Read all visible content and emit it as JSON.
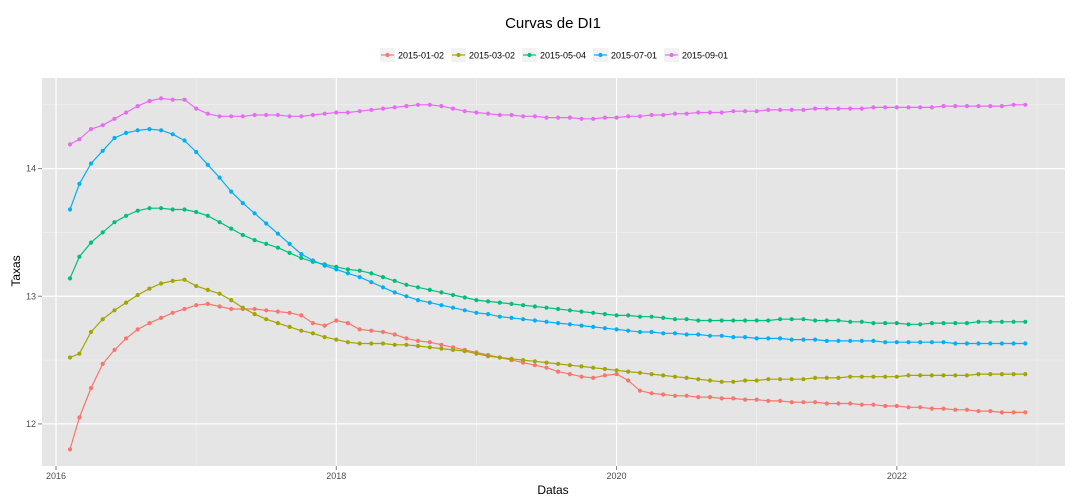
{
  "chart_data": {
    "type": "line",
    "title": "Curvas de DI1",
    "xlabel": "Datas",
    "ylabel": "Taxas",
    "xlim": [
      2015.9,
      2023.2
    ],
    "ylim": [
      11.67,
      14.71
    ],
    "x_ticks": [
      2016,
      2018,
      2020,
      2022
    ],
    "x_tick_labels": [
      "2016",
      "2018",
      "2020",
      "2022"
    ],
    "y_ticks": [
      12,
      13,
      14
    ],
    "y_tick_labels": [
      "12",
      "13",
      "14"
    ],
    "grid": true,
    "legend_position": "top",
    "markers": true,
    "series": [
      {
        "name": "2015-01-02",
        "color": "#F8766D",
        "x": [
          2016.1,
          2016.167,
          2016.25,
          2016.333,
          2016.417,
          2016.5,
          2016.583,
          2016.667,
          2016.75,
          2016.833,
          2016.917,
          2017.0,
          2017.083,
          2017.167,
          2017.25,
          2017.333,
          2017.417,
          2017.5,
          2017.583,
          2017.667,
          2017.75,
          2017.833,
          2017.917,
          2018.0,
          2018.083,
          2018.167,
          2018.25,
          2018.333,
          2018.417,
          2018.5,
          2018.583,
          2018.667,
          2018.75,
          2018.833,
          2018.917,
          2019.0,
          2019.083,
          2019.167,
          2019.25,
          2019.333,
          2019.417,
          2019.5,
          2019.583,
          2019.667,
          2019.75,
          2019.833,
          2019.917,
          2020.0,
          2020.083,
          2020.167,
          2020.25,
          2020.333,
          2020.417,
          2020.5,
          2020.583,
          2020.667,
          2020.75,
          2020.833,
          2020.917,
          2021.0,
          2021.083,
          2021.167,
          2021.25,
          2021.333,
          2021.417,
          2021.5,
          2021.583,
          2021.667,
          2021.75,
          2021.833,
          2021.917,
          2022.0,
          2022.083,
          2022.167,
          2022.25,
          2022.333,
          2022.417,
          2022.5,
          2022.583,
          2022.667,
          2022.75,
          2022.833,
          2022.917
        ],
        "values": [
          11.8,
          12.05,
          12.28,
          12.47,
          12.58,
          12.67,
          12.74,
          12.79,
          12.83,
          12.87,
          12.9,
          12.93,
          12.94,
          12.92,
          12.9,
          12.9,
          12.9,
          12.89,
          12.88,
          12.87,
          12.85,
          12.79,
          12.77,
          12.81,
          12.79,
          12.74,
          12.73,
          12.72,
          12.7,
          12.67,
          12.65,
          12.64,
          12.62,
          12.6,
          12.58,
          12.56,
          12.54,
          12.52,
          12.5,
          12.48,
          12.46,
          12.44,
          12.41,
          12.39,
          12.37,
          12.36,
          12.38,
          12.39,
          12.34,
          12.26,
          12.24,
          12.23,
          12.22,
          12.22,
          12.21,
          12.21,
          12.2,
          12.2,
          12.19,
          12.19,
          12.18,
          12.18,
          12.17,
          12.17,
          12.17,
          12.16,
          12.16,
          12.16,
          12.15,
          12.15,
          12.14,
          12.14,
          12.13,
          12.13,
          12.12,
          12.12,
          12.11,
          12.11,
          12.1,
          12.1,
          12.09,
          12.09,
          12.09
        ]
      },
      {
        "name": "2015-03-02",
        "color": "#A3A500",
        "x": [
          2016.1,
          2016.167,
          2016.25,
          2016.333,
          2016.417,
          2016.5,
          2016.583,
          2016.667,
          2016.75,
          2016.833,
          2016.917,
          2017.0,
          2017.083,
          2017.167,
          2017.25,
          2017.333,
          2017.417,
          2017.5,
          2017.583,
          2017.667,
          2017.75,
          2017.833,
          2017.917,
          2018.0,
          2018.083,
          2018.167,
          2018.25,
          2018.333,
          2018.417,
          2018.5,
          2018.583,
          2018.667,
          2018.75,
          2018.833,
          2018.917,
          2019.0,
          2019.083,
          2019.167,
          2019.25,
          2019.333,
          2019.417,
          2019.5,
          2019.583,
          2019.667,
          2019.75,
          2019.833,
          2019.917,
          2020.0,
          2020.083,
          2020.167,
          2020.25,
          2020.333,
          2020.417,
          2020.5,
          2020.583,
          2020.667,
          2020.75,
          2020.833,
          2020.917,
          2021.0,
          2021.083,
          2021.167,
          2021.25,
          2021.333,
          2021.417,
          2021.5,
          2021.583,
          2021.667,
          2021.75,
          2021.833,
          2021.917,
          2022.0,
          2022.083,
          2022.167,
          2022.25,
          2022.333,
          2022.417,
          2022.5,
          2022.583,
          2022.667,
          2022.75,
          2022.833,
          2022.917
        ],
        "values": [
          12.52,
          12.55,
          12.72,
          12.82,
          12.89,
          12.95,
          13.01,
          13.06,
          13.1,
          13.12,
          13.13,
          13.08,
          13.05,
          13.02,
          12.97,
          12.91,
          12.86,
          12.82,
          12.79,
          12.76,
          12.73,
          12.71,
          12.68,
          12.66,
          12.64,
          12.63,
          12.63,
          12.63,
          12.62,
          12.62,
          12.61,
          12.6,
          12.59,
          12.58,
          12.57,
          12.55,
          12.53,
          12.52,
          12.51,
          12.5,
          12.49,
          12.48,
          12.47,
          12.46,
          12.45,
          12.44,
          12.43,
          12.42,
          12.41,
          12.4,
          12.39,
          12.38,
          12.37,
          12.36,
          12.35,
          12.34,
          12.33,
          12.33,
          12.34,
          12.34,
          12.35,
          12.35,
          12.35,
          12.35,
          12.36,
          12.36,
          12.36,
          12.37,
          12.37,
          12.37,
          12.37,
          12.37,
          12.38,
          12.38,
          12.38,
          12.38,
          12.38,
          12.38,
          12.39,
          12.39,
          12.39,
          12.39,
          12.39
        ]
      },
      {
        "name": "2015-05-04",
        "color": "#00BF7D",
        "x": [
          2016.1,
          2016.167,
          2016.25,
          2016.333,
          2016.417,
          2016.5,
          2016.583,
          2016.667,
          2016.75,
          2016.833,
          2016.917,
          2017.0,
          2017.083,
          2017.167,
          2017.25,
          2017.333,
          2017.417,
          2017.5,
          2017.583,
          2017.667,
          2017.75,
          2017.833,
          2017.917,
          2018.0,
          2018.083,
          2018.167,
          2018.25,
          2018.333,
          2018.417,
          2018.5,
          2018.583,
          2018.667,
          2018.75,
          2018.833,
          2018.917,
          2019.0,
          2019.083,
          2019.167,
          2019.25,
          2019.333,
          2019.417,
          2019.5,
          2019.583,
          2019.667,
          2019.75,
          2019.833,
          2019.917,
          2020.0,
          2020.083,
          2020.167,
          2020.25,
          2020.333,
          2020.417,
          2020.5,
          2020.583,
          2020.667,
          2020.75,
          2020.833,
          2020.917,
          2021.0,
          2021.083,
          2021.167,
          2021.25,
          2021.333,
          2021.417,
          2021.5,
          2021.583,
          2021.667,
          2021.75,
          2021.833,
          2021.917,
          2022.0,
          2022.083,
          2022.167,
          2022.25,
          2022.333,
          2022.417,
          2022.5,
          2022.583,
          2022.667,
          2022.75,
          2022.833,
          2022.917
        ],
        "values": [
          13.14,
          13.31,
          13.42,
          13.5,
          13.58,
          13.63,
          13.67,
          13.69,
          13.69,
          13.68,
          13.68,
          13.66,
          13.63,
          13.58,
          13.53,
          13.48,
          13.44,
          13.41,
          13.38,
          13.34,
          13.3,
          13.27,
          13.25,
          13.23,
          13.21,
          13.2,
          13.18,
          13.15,
          13.12,
          13.09,
          13.07,
          13.05,
          13.03,
          13.01,
          12.99,
          12.97,
          12.96,
          12.95,
          12.94,
          12.93,
          12.92,
          12.91,
          12.9,
          12.89,
          12.88,
          12.87,
          12.86,
          12.85,
          12.85,
          12.84,
          12.84,
          12.83,
          12.82,
          12.82,
          12.81,
          12.81,
          12.81,
          12.81,
          12.81,
          12.81,
          12.81,
          12.82,
          12.82,
          12.82,
          12.81,
          12.81,
          12.81,
          12.8,
          12.8,
          12.79,
          12.79,
          12.79,
          12.78,
          12.78,
          12.79,
          12.79,
          12.79,
          12.79,
          12.8,
          12.8,
          12.8,
          12.8,
          12.8
        ]
      },
      {
        "name": "2015-07-01",
        "color": "#00B0F6",
        "x": [
          2016.1,
          2016.167,
          2016.25,
          2016.333,
          2016.417,
          2016.5,
          2016.583,
          2016.667,
          2016.75,
          2016.833,
          2016.917,
          2017.0,
          2017.083,
          2017.167,
          2017.25,
          2017.333,
          2017.417,
          2017.5,
          2017.583,
          2017.667,
          2017.75,
          2017.833,
          2017.917,
          2018.0,
          2018.083,
          2018.167,
          2018.25,
          2018.333,
          2018.417,
          2018.5,
          2018.583,
          2018.667,
          2018.75,
          2018.833,
          2018.917,
          2019.0,
          2019.083,
          2019.167,
          2019.25,
          2019.333,
          2019.417,
          2019.5,
          2019.583,
          2019.667,
          2019.75,
          2019.833,
          2019.917,
          2020.0,
          2020.083,
          2020.167,
          2020.25,
          2020.333,
          2020.417,
          2020.5,
          2020.583,
          2020.667,
          2020.75,
          2020.833,
          2020.917,
          2021.0,
          2021.083,
          2021.167,
          2021.25,
          2021.333,
          2021.417,
          2021.5,
          2021.583,
          2021.667,
          2021.75,
          2021.833,
          2021.917,
          2022.0,
          2022.083,
          2022.167,
          2022.25,
          2022.333,
          2022.417,
          2022.5,
          2022.583,
          2022.667,
          2022.75,
          2022.833,
          2022.917
        ],
        "values": [
          13.68,
          13.88,
          14.04,
          14.14,
          14.24,
          14.28,
          14.3,
          14.31,
          14.3,
          14.27,
          14.22,
          14.13,
          14.03,
          13.93,
          13.82,
          13.73,
          13.65,
          13.57,
          13.49,
          13.41,
          13.33,
          13.28,
          13.24,
          13.21,
          13.18,
          13.15,
          13.11,
          13.07,
          13.03,
          13.0,
          12.97,
          12.95,
          12.93,
          12.91,
          12.89,
          12.87,
          12.86,
          12.84,
          12.83,
          12.82,
          12.81,
          12.8,
          12.79,
          12.78,
          12.77,
          12.76,
          12.75,
          12.74,
          12.73,
          12.72,
          12.72,
          12.71,
          12.71,
          12.7,
          12.7,
          12.69,
          12.69,
          12.68,
          12.68,
          12.67,
          12.67,
          12.67,
          12.66,
          12.66,
          12.66,
          12.65,
          12.65,
          12.65,
          12.65,
          12.65,
          12.64,
          12.64,
          12.64,
          12.64,
          12.64,
          12.64,
          12.63,
          12.63,
          12.63,
          12.63,
          12.63,
          12.63,
          12.63
        ]
      },
      {
        "name": "2015-09-01",
        "color": "#E76BF3",
        "x": [
          2016.1,
          2016.167,
          2016.25,
          2016.333,
          2016.417,
          2016.5,
          2016.583,
          2016.667,
          2016.75,
          2016.833,
          2016.917,
          2017.0,
          2017.083,
          2017.167,
          2017.25,
          2017.333,
          2017.417,
          2017.5,
          2017.583,
          2017.667,
          2017.75,
          2017.833,
          2017.917,
          2018.0,
          2018.083,
          2018.167,
          2018.25,
          2018.333,
          2018.417,
          2018.5,
          2018.583,
          2018.667,
          2018.75,
          2018.833,
          2018.917,
          2019.0,
          2019.083,
          2019.167,
          2019.25,
          2019.333,
          2019.417,
          2019.5,
          2019.583,
          2019.667,
          2019.75,
          2019.833,
          2019.917,
          2020.0,
          2020.083,
          2020.167,
          2020.25,
          2020.333,
          2020.417,
          2020.5,
          2020.583,
          2020.667,
          2020.75,
          2020.833,
          2020.917,
          2021.0,
          2021.083,
          2021.167,
          2021.25,
          2021.333,
          2021.417,
          2021.5,
          2021.583,
          2021.667,
          2021.75,
          2021.833,
          2021.917,
          2022.0,
          2022.083,
          2022.167,
          2022.25,
          2022.333,
          2022.417,
          2022.5,
          2022.583,
          2022.667,
          2022.75,
          2022.833,
          2022.917
        ],
        "values": [
          14.19,
          14.23,
          14.31,
          14.34,
          14.39,
          14.44,
          14.49,
          14.53,
          14.55,
          14.54,
          14.54,
          14.47,
          14.43,
          14.41,
          14.41,
          14.41,
          14.42,
          14.42,
          14.42,
          14.41,
          14.41,
          14.42,
          14.43,
          14.44,
          14.44,
          14.45,
          14.46,
          14.47,
          14.48,
          14.49,
          14.5,
          14.5,
          14.49,
          14.47,
          14.45,
          14.44,
          14.43,
          14.42,
          14.42,
          14.41,
          14.41,
          14.4,
          14.4,
          14.4,
          14.39,
          14.39,
          14.4,
          14.4,
          14.41,
          14.41,
          14.42,
          14.42,
          14.43,
          14.43,
          14.44,
          14.44,
          14.44,
          14.45,
          14.45,
          14.45,
          14.46,
          14.46,
          14.46,
          14.46,
          14.47,
          14.47,
          14.47,
          14.47,
          14.47,
          14.48,
          14.48,
          14.48,
          14.48,
          14.48,
          14.48,
          14.49,
          14.49,
          14.49,
          14.49,
          14.49,
          14.49,
          14.5,
          14.5
        ]
      }
    ]
  }
}
